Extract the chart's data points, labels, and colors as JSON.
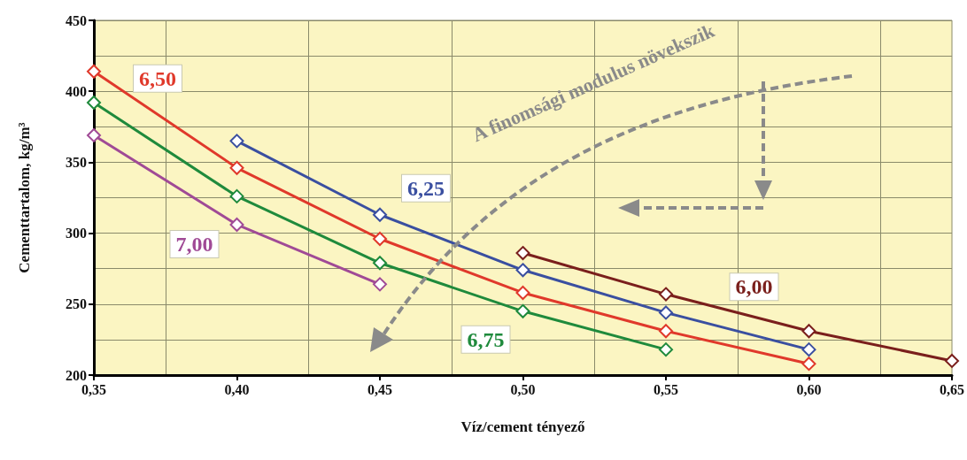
{
  "chart_data": {
    "type": "line",
    "xlabel": "Víz/cement tényező",
    "ylabel": "Cementtartalom, kg/m³",
    "xlim": [
      0.35,
      0.65
    ],
    "xticks": [
      {
        "value": 0.35,
        "label": "0,35"
      },
      {
        "value": 0.4,
        "label": "0,40"
      },
      {
        "value": 0.45,
        "label": "0,45"
      },
      {
        "value": 0.5,
        "label": "0,50"
      },
      {
        "value": 0.55,
        "label": "0,55"
      },
      {
        "value": 0.6,
        "label": "0,60"
      },
      {
        "value": 0.65,
        "label": "0,65"
      }
    ],
    "ylim": [
      200,
      450
    ],
    "yticks": [
      200,
      250,
      300,
      350,
      400,
      450
    ],
    "grid": true,
    "legend": false,
    "marker": "diamond",
    "line_style": "solid",
    "series": [
      {
        "name": "6,50",
        "color": "#e0392b",
        "x": [
          0.35,
          0.4,
          0.45,
          0.5,
          0.55,
          0.6
        ],
        "values": [
          414,
          346,
          296,
          258,
          231,
          208
        ]
      },
      {
        "name": "6,25",
        "color": "#3a4fa0",
        "x": [
          0.4,
          0.45,
          0.5,
          0.55,
          0.6
        ],
        "values": [
          365,
          313,
          274,
          244,
          218
        ]
      },
      {
        "name": "7,00",
        "color": "#a04a96",
        "x": [
          0.35,
          0.4,
          0.45
        ],
        "values": [
          369,
          306,
          264
        ]
      },
      {
        "name": "6,75",
        "color": "#1f8a3c",
        "x": [
          0.35,
          0.4,
          0.45,
          0.5,
          0.55
        ],
        "values": [
          392,
          326,
          279,
          245,
          218
        ]
      },
      {
        "name": "6,00",
        "color": "#7a1f1c",
        "x": [
          0.5,
          0.55,
          0.6,
          0.65
        ],
        "values": [
          286,
          257,
          231,
          210
        ]
      }
    ],
    "annotations": [
      "A finomsági modulus növekszik"
    ]
  }
}
